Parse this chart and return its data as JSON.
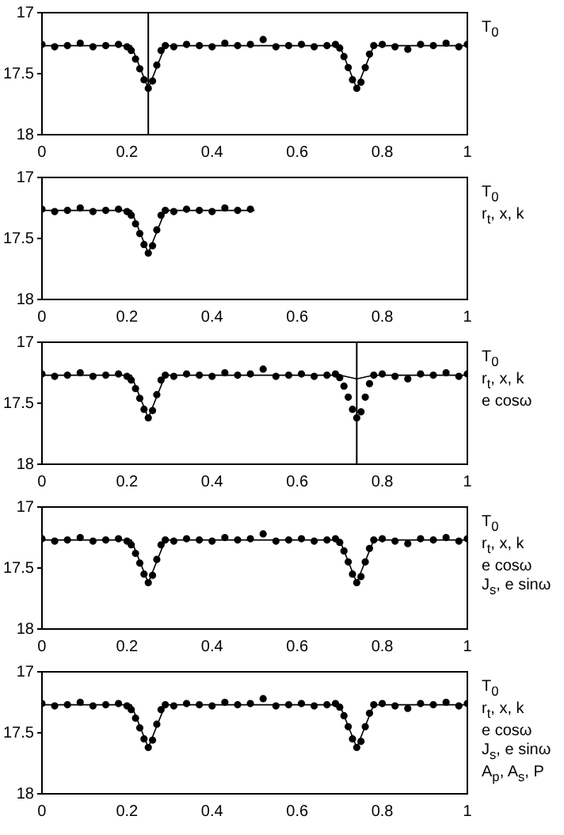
{
  "chart_data": [
    {
      "type": "scatter",
      "xlim": [
        0,
        1
      ],
      "xticks": [
        0,
        0.2,
        0.4,
        0.6,
        0.8,
        1
      ],
      "ylim": [
        18,
        17
      ],
      "yticks": [
        17,
        17.5,
        18
      ],
      "grid": false,
      "legend": false,
      "annotations": [
        "T$_{0}$"
      ],
      "ref_lines": [
        {
          "axis": "x",
          "value": 0.25,
          "color": "#000000"
        }
      ],
      "series": [
        {
          "type": "scatter",
          "marker": "circle",
          "color": "#000000",
          "x": [
            0,
            0.03,
            0.06,
            0.09,
            0.12,
            0.15,
            0.18,
            0.2,
            0.21,
            0.22,
            0.23,
            0.24,
            0.25,
            0.26,
            0.27,
            0.28,
            0.29,
            0.31,
            0.34,
            0.37,
            0.4,
            0.43,
            0.46,
            0.49,
            0.52,
            0.55,
            0.58,
            0.61,
            0.64,
            0.67,
            0.69,
            0.7,
            0.71,
            0.72,
            0.73,
            0.74,
            0.75,
            0.76,
            0.77,
            0.78,
            0.8,
            0.83,
            0.86,
            0.89,
            0.92,
            0.95,
            0.98,
            1
          ],
          "values": [
            17.26,
            17.28,
            17.27,
            17.25,
            17.28,
            17.27,
            17.26,
            17.28,
            17.31,
            17.38,
            17.46,
            17.55,
            17.62,
            17.56,
            17.43,
            17.31,
            17.27,
            17.28,
            17.26,
            17.27,
            17.28,
            17.25,
            17.27,
            17.26,
            17.22,
            17.28,
            17.27,
            17.26,
            17.28,
            17.27,
            17.26,
            17.29,
            17.36,
            17.45,
            17.55,
            17.62,
            17.57,
            17.45,
            17.34,
            17.27,
            17.26,
            17.28,
            17.3,
            17.26,
            17.27,
            17.25,
            17.28,
            17.26
          ]
        },
        {
          "type": "line",
          "marker": "none",
          "line_style": "solid",
          "color": "#000000",
          "x": [
            0,
            0.21,
            0.25,
            0.29,
            0.7,
            0.74,
            0.78,
            1
          ],
          "values": [
            17.27,
            17.27,
            17.62,
            17.27,
            17.27,
            17.62,
            17.27,
            17.27
          ]
        }
      ]
    },
    {
      "type": "scatter",
      "xlim": [
        0,
        1
      ],
      "xticks": [
        0,
        0.2,
        0.4,
        0.6,
        0.8,
        1
      ],
      "ylim": [
        18,
        17
      ],
      "yticks": [
        17,
        17.5,
        18
      ],
      "grid": false,
      "legend": false,
      "annotations": [
        "T$_{0}$",
        "r$_{t}$, x, k"
      ],
      "series": [
        {
          "type": "scatter",
          "marker": "circle",
          "color": "#000000",
          "x": [
            0,
            0.03,
            0.06,
            0.09,
            0.12,
            0.15,
            0.18,
            0.2,
            0.21,
            0.22,
            0.23,
            0.24,
            0.25,
            0.26,
            0.27,
            0.28,
            0.29,
            0.31,
            0.34,
            0.37,
            0.4,
            0.43,
            0.46,
            0.49
          ],
          "values": [
            17.26,
            17.28,
            17.27,
            17.25,
            17.28,
            17.27,
            17.26,
            17.28,
            17.31,
            17.38,
            17.46,
            17.55,
            17.62,
            17.56,
            17.43,
            17.31,
            17.27,
            17.28,
            17.26,
            17.27,
            17.28,
            17.25,
            17.27,
            17.26
          ]
        },
        {
          "type": "line",
          "marker": "none",
          "line_style": "solid",
          "color": "#000000",
          "x": [
            0,
            0.21,
            0.25,
            0.29,
            0.5
          ],
          "values": [
            17.27,
            17.27,
            17.62,
            17.27,
            17.27
          ]
        }
      ]
    },
    {
      "type": "scatter",
      "xlim": [
        0,
        1
      ],
      "xticks": [
        0,
        0.2,
        0.4,
        0.6,
        0.8,
        1
      ],
      "ylim": [
        18,
        17
      ],
      "yticks": [
        17,
        17.5,
        18
      ],
      "grid": false,
      "legend": false,
      "annotations": [
        "T$_{0}$",
        "r$_{t}$, x, k",
        "e cosω"
      ],
      "ref_lines": [
        {
          "axis": "x",
          "value": 0.74,
          "color": "#000000"
        }
      ],
      "series": [
        {
          "type": "scatter",
          "marker": "circle",
          "color": "#000000",
          "x": [
            0,
            0.03,
            0.06,
            0.09,
            0.12,
            0.15,
            0.18,
            0.2,
            0.21,
            0.22,
            0.23,
            0.24,
            0.25,
            0.26,
            0.27,
            0.28,
            0.29,
            0.31,
            0.34,
            0.37,
            0.4,
            0.43,
            0.46,
            0.49,
            0.52,
            0.55,
            0.58,
            0.61,
            0.64,
            0.67,
            0.69,
            0.7,
            0.71,
            0.72,
            0.73,
            0.74,
            0.75,
            0.76,
            0.77,
            0.78,
            0.8,
            0.83,
            0.86,
            0.89,
            0.92,
            0.95,
            0.98,
            1
          ],
          "values": [
            17.26,
            17.28,
            17.27,
            17.25,
            17.28,
            17.27,
            17.26,
            17.28,
            17.31,
            17.38,
            17.46,
            17.55,
            17.62,
            17.56,
            17.43,
            17.31,
            17.27,
            17.28,
            17.26,
            17.27,
            17.28,
            17.25,
            17.27,
            17.26,
            17.22,
            17.28,
            17.27,
            17.26,
            17.28,
            17.27,
            17.26,
            17.29,
            17.36,
            17.45,
            17.55,
            17.62,
            17.57,
            17.45,
            17.34,
            17.27,
            17.26,
            17.28,
            17.3,
            17.26,
            17.27,
            17.25,
            17.28,
            17.26
          ]
        },
        {
          "type": "line",
          "marker": "none",
          "line_style": "solid",
          "color": "#000000",
          "x": [
            0,
            0.21,
            0.25,
            0.29,
            0.7,
            0.74,
            0.78,
            1
          ],
          "values": [
            17.27,
            17.27,
            17.62,
            17.27,
            17.27,
            17.3,
            17.27,
            17.27
          ]
        }
      ]
    },
    {
      "type": "scatter",
      "xlim": [
        0,
        1
      ],
      "xticks": [
        0,
        0.2,
        0.4,
        0.6,
        0.8,
        1
      ],
      "ylim": [
        18,
        17
      ],
      "yticks": [
        17,
        17.5,
        18
      ],
      "grid": false,
      "legend": false,
      "annotations": [
        "T$_{0}$",
        "r$_{t}$, x, k",
        "e cosω",
        "J$_{s}$, e sinω"
      ],
      "series": [
        {
          "type": "scatter",
          "marker": "circle",
          "color": "#000000",
          "x": [
            0,
            0.03,
            0.06,
            0.09,
            0.12,
            0.15,
            0.18,
            0.2,
            0.21,
            0.22,
            0.23,
            0.24,
            0.25,
            0.26,
            0.27,
            0.28,
            0.29,
            0.31,
            0.34,
            0.37,
            0.4,
            0.43,
            0.46,
            0.49,
            0.52,
            0.55,
            0.58,
            0.61,
            0.64,
            0.67,
            0.69,
            0.7,
            0.71,
            0.72,
            0.73,
            0.74,
            0.75,
            0.76,
            0.77,
            0.78,
            0.8,
            0.83,
            0.86,
            0.89,
            0.92,
            0.95,
            0.98,
            1
          ],
          "values": [
            17.26,
            17.28,
            17.27,
            17.25,
            17.28,
            17.27,
            17.26,
            17.28,
            17.31,
            17.38,
            17.46,
            17.55,
            17.62,
            17.56,
            17.43,
            17.31,
            17.27,
            17.28,
            17.26,
            17.27,
            17.28,
            17.25,
            17.27,
            17.26,
            17.22,
            17.28,
            17.27,
            17.26,
            17.28,
            17.27,
            17.26,
            17.29,
            17.36,
            17.45,
            17.55,
            17.62,
            17.57,
            17.45,
            17.34,
            17.27,
            17.26,
            17.28,
            17.3,
            17.26,
            17.27,
            17.25,
            17.28,
            17.26
          ]
        },
        {
          "type": "line",
          "marker": "none",
          "line_style": "solid",
          "color": "#000000",
          "x": [
            0,
            0.21,
            0.25,
            0.29,
            0.7,
            0.74,
            0.78,
            1
          ],
          "values": [
            17.27,
            17.27,
            17.62,
            17.27,
            17.27,
            17.62,
            17.27,
            17.27
          ]
        }
      ]
    },
    {
      "type": "scatter",
      "xlim": [
        0,
        1
      ],
      "xticks": [
        0,
        0.2,
        0.4,
        0.6,
        0.8,
        1
      ],
      "ylim": [
        18,
        17
      ],
      "yticks": [
        17,
        17.5,
        18
      ],
      "grid": false,
      "legend": false,
      "annotations": [
        "T$_{0}$",
        "r$_{t}$, x, k",
        "e cosω",
        "J$_{s}$, e sinω",
        "A$_{p}$, A$_{s}$, P"
      ],
      "series": [
        {
          "type": "scatter",
          "marker": "circle",
          "color": "#000000",
          "x": [
            0,
            0.03,
            0.06,
            0.09,
            0.12,
            0.15,
            0.18,
            0.2,
            0.21,
            0.22,
            0.23,
            0.24,
            0.25,
            0.26,
            0.27,
            0.28,
            0.29,
            0.31,
            0.34,
            0.37,
            0.4,
            0.43,
            0.46,
            0.49,
            0.52,
            0.55,
            0.58,
            0.61,
            0.64,
            0.67,
            0.69,
            0.7,
            0.71,
            0.72,
            0.73,
            0.74,
            0.75,
            0.76,
            0.77,
            0.78,
            0.8,
            0.83,
            0.86,
            0.89,
            0.92,
            0.95,
            0.98,
            1
          ],
          "values": [
            17.26,
            17.28,
            17.27,
            17.25,
            17.28,
            17.27,
            17.26,
            17.28,
            17.31,
            17.38,
            17.46,
            17.55,
            17.62,
            17.56,
            17.43,
            17.31,
            17.27,
            17.28,
            17.26,
            17.27,
            17.28,
            17.25,
            17.27,
            17.26,
            17.22,
            17.28,
            17.27,
            17.26,
            17.28,
            17.27,
            17.26,
            17.29,
            17.36,
            17.45,
            17.55,
            17.62,
            17.57,
            17.45,
            17.34,
            17.27,
            17.26,
            17.28,
            17.3,
            17.26,
            17.27,
            17.25,
            17.28,
            17.26
          ]
        },
        {
          "type": "line",
          "marker": "none",
          "line_style": "solid",
          "color": "#000000",
          "x": [
            0,
            0.21,
            0.25,
            0.29,
            0.7,
            0.74,
            0.78,
            1
          ],
          "values": [
            17.27,
            17.27,
            17.62,
            17.27,
            17.27,
            17.62,
            17.27,
            17.27
          ]
        }
      ]
    }
  ]
}
